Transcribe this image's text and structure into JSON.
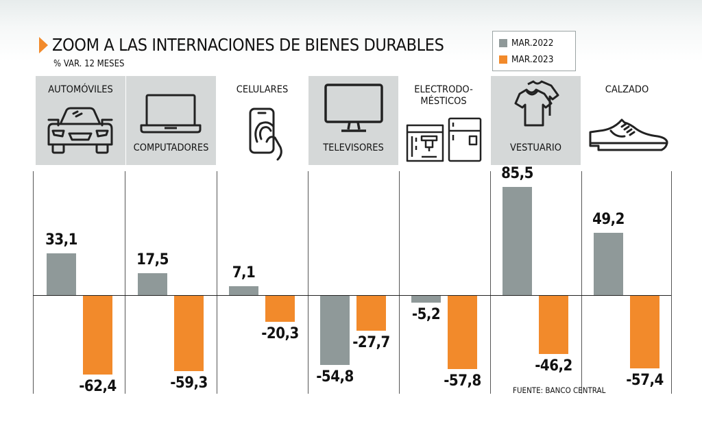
{
  "title": "ZOOM A LAS INTERNACIONES DE BIENES DURABLES",
  "subtitle": "% VAR. 12 MESES",
  "source": "FUENTE: BANCO CENTRAL",
  "colors": {
    "mar2022": "#8f9999",
    "mar2023": "#f28a2b",
    "accent": "#f28a2b"
  },
  "chart_data": {
    "type": "bar",
    "title": "ZOOM A LAS INTERNACIONES DE BIENES DURABLES",
    "subtitle": "% VAR. 12 MESES",
    "xlabel": "",
    "ylabel": "% VAR. 12 MESES",
    "ylim": [
      -65,
      90
    ],
    "grid": false,
    "legend_position": "top-right",
    "categories": [
      "AUTOMÓVILES",
      "COMPUTADORES",
      "CELULARES",
      "TELEVISORES",
      "ELECTRODO-MÉSTICOS",
      "VESTUARIO",
      "CALZADO"
    ],
    "series": [
      {
        "name": "MAR.2022",
        "values": [
          33.1,
          17.5,
          7.1,
          -54.8,
          -5.2,
          85.5,
          49.2
        ],
        "labels": [
          "33,1",
          "17,5",
          "7,1",
          "-54,8",
          "-5,2",
          "85,5",
          "49,2"
        ]
      },
      {
        "name": "MAR.2023",
        "values": [
          -62.4,
          -59.3,
          -20.3,
          -27.7,
          -57.8,
          -46.2,
          -57.4
        ],
        "labels": [
          "-62,4",
          "-59,3",
          "-20,3",
          "-27,7",
          "-57,8",
          "-46,2",
          "-57,4"
        ]
      }
    ],
    "icons": [
      "car-icon",
      "laptop-icon",
      "smartphone-icon",
      "television-icon",
      "appliances-icon",
      "tshirt-icon",
      "shoe-icon"
    ]
  }
}
